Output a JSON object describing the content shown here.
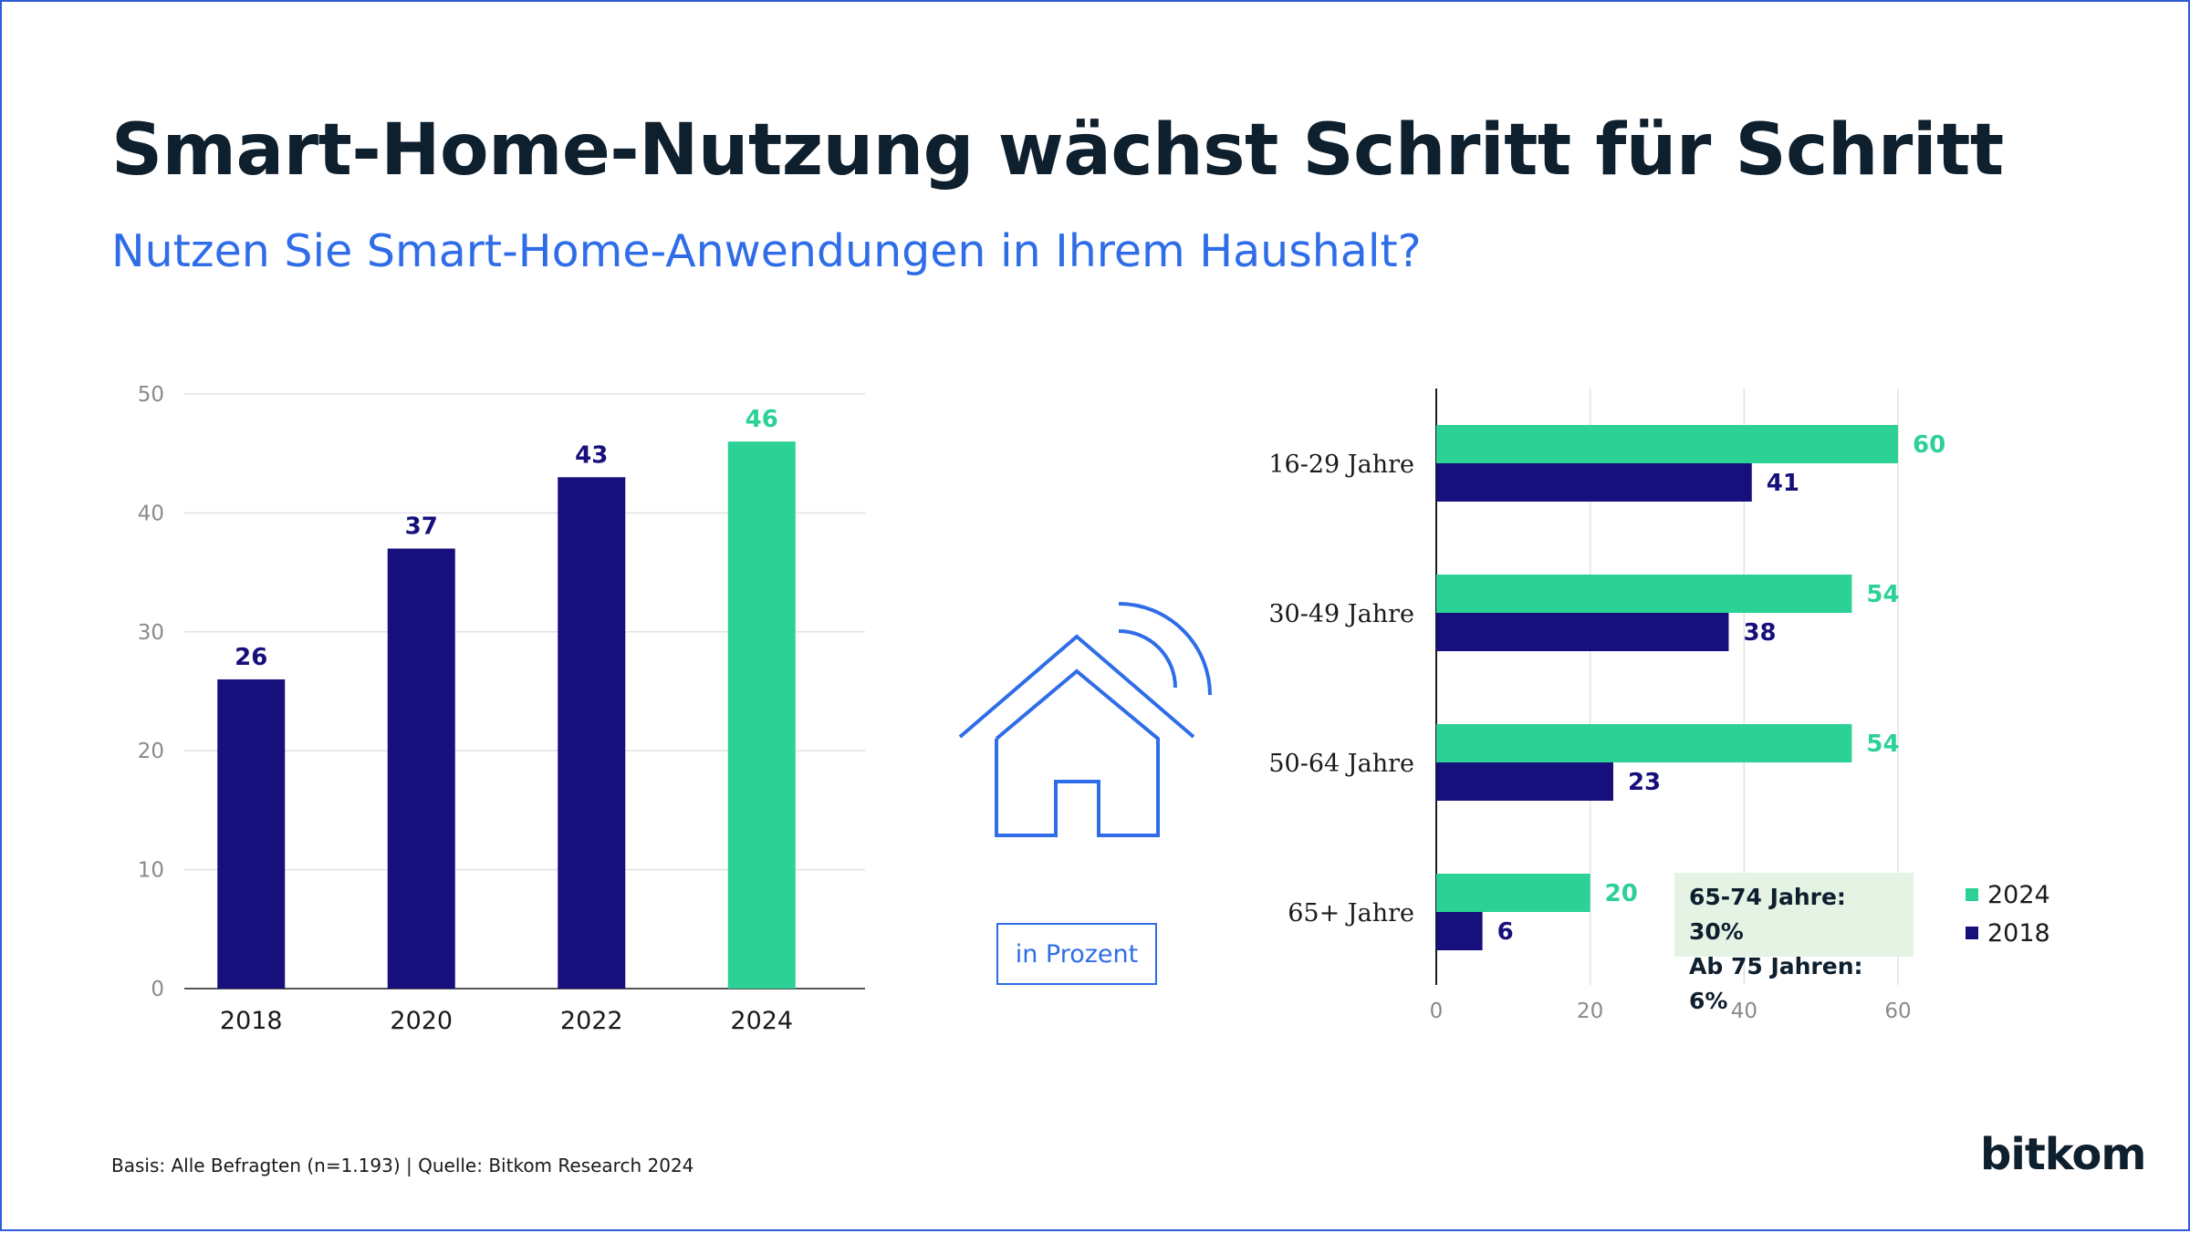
{
  "title": "Smart-Home-Nutzung wächst Schritt für Schritt",
  "subtitle": "Nutzen Sie Smart-Home-Anwendungen in Ihrem Haushalt?",
  "unit_label": "in Prozent",
  "note": {
    "line1": "65-74 Jahre: 30%",
    "line2": "Ab 75 Jahren: 6%"
  },
  "legend": [
    {
      "label": "2024",
      "color": "#2bd195"
    },
    {
      "label": "2018",
      "color": "#160f7c"
    }
  ],
  "footer": "Basis: Alle Befragten (n=1.193) | Quelle: Bitkom Research 2024",
  "logo": "bitkom",
  "icon": "smart-home-icon",
  "colors": {
    "navy": "#160f7c",
    "green": "#2bd195",
    "accent": "#2f6de8"
  },
  "chart_data": [
    {
      "type": "bar",
      "categories": [
        "2018",
        "2020",
        "2022",
        "2024"
      ],
      "values": [
        26,
        37,
        43,
        46
      ],
      "highlight_index": 3,
      "ylim": [
        0,
        50
      ],
      "yticks": [
        0,
        10,
        20,
        30,
        40,
        50
      ],
      "grid": true
    },
    {
      "type": "bar",
      "orientation": "horizontal",
      "categories": [
        "16-29 Jahre",
        "30-49 Jahre",
        "50-64 Jahre",
        "65+ Jahre"
      ],
      "series": [
        {
          "name": "2024",
          "values": [
            60,
            54,
            54,
            20
          ],
          "color": "#2bd195"
        },
        {
          "name": "2018",
          "values": [
            41,
            38,
            23,
            6
          ],
          "color": "#160f7c"
        }
      ],
      "xlim": [
        0,
        60
      ],
      "xticks": [
        0,
        20,
        40,
        60
      ],
      "grid": true,
      "legend_position": "bottom-right"
    }
  ]
}
